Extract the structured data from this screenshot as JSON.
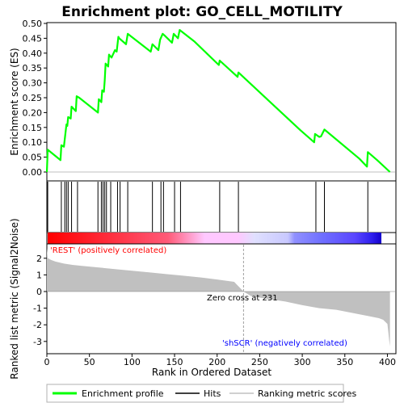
{
  "chart_data": {
    "type": "line",
    "title": "Enrichment plot: GO_CELL_MOTILITY",
    "xlabel": "Rank in Ordered Dataset",
    "ylabel_top": "Enrichment score (ES)",
    "ylabel_bottom": "Ranked list metric (Signal2Noise)",
    "xlim": [
      0,
      410
    ],
    "ylim_top": [
      0,
      0.5
    ],
    "ylim_bottom": [
      -3.4,
      2.6
    ],
    "x_ticks": [
      "0",
      "50",
      "100",
      "150",
      "200",
      "250",
      "300",
      "350",
      "400"
    ],
    "y_ticks_top": [
      "0.00",
      "0.05",
      "0.10",
      "0.15",
      "0.20",
      "0.25",
      "0.30",
      "0.35",
      "0.40",
      "0.45",
      "0.50"
    ],
    "y_ticks_bottom": [
      "-3",
      "-2",
      "-1",
      "0",
      "1",
      "2"
    ],
    "series": [
      {
        "name": "Enrichment profile",
        "color": "#00ff00",
        "x": [
          0,
          1,
          16,
          17,
          20,
          22,
          23,
          24,
          25,
          28,
          29,
          34,
          35,
          38,
          60,
          61,
          64,
          65,
          67,
          68,
          69,
          72,
          73,
          76,
          80,
          82,
          84,
          85,
          93,
          95,
          122,
          124,
          131,
          133,
          136,
          138,
          147,
          149,
          154,
          156,
          173,
          202,
          203,
          224,
          225,
          298,
          314,
          315,
          320,
          322,
          326,
          367,
          376,
          377,
          388,
          403
        ],
        "y": [
          0.0,
          0.075,
          0.04,
          0.09,
          0.085,
          0.135,
          0.16,
          0.155,
          0.185,
          0.18,
          0.22,
          0.205,
          0.255,
          0.25,
          0.2,
          0.245,
          0.235,
          0.275,
          0.27,
          0.31,
          0.365,
          0.355,
          0.395,
          0.385,
          0.41,
          0.405,
          0.455,
          0.45,
          0.43,
          0.465,
          0.405,
          0.43,
          0.41,
          0.445,
          0.465,
          0.46,
          0.435,
          0.465,
          0.45,
          0.478,
          0.44,
          0.36,
          0.375,
          0.32,
          0.335,
          0.14,
          0.1,
          0.128,
          0.118,
          0.12,
          0.143,
          0.045,
          0.018,
          0.067,
          0.04,
          0.0
        ]
      },
      {
        "name": "Hits",
        "color": "#000000",
        "x": [
          1,
          17,
          21,
          23,
          25,
          29,
          36,
          60,
          64,
          66,
          68,
          70,
          75,
          83,
          86,
          95,
          124,
          134,
          137,
          150,
          157,
          203,
          225,
          316,
          326,
          377
        ]
      },
      {
        "name": "Ranking metric scores",
        "color": "#c0c0c0",
        "x": [
          0,
          1,
          5,
          10,
          20,
          30,
          40,
          60,
          80,
          100,
          120,
          140,
          160,
          180,
          200,
          220,
          231,
          240,
          260,
          280,
          300,
          320,
          340,
          360,
          380,
          390,
          395,
          400,
          401,
          402,
          403
        ],
        "y": [
          2.6,
          2.0,
          1.9,
          1.8,
          1.68,
          1.6,
          1.55,
          1.45,
          1.35,
          1.25,
          1.15,
          1.05,
          0.95,
          0.85,
          0.72,
          0.58,
          0.0,
          -0.28,
          -0.45,
          -0.6,
          -0.82,
          -1.0,
          -1.1,
          -1.3,
          -1.5,
          -1.6,
          -1.7,
          -1.95,
          -2.4,
          -2.9,
          -3.3
        ]
      }
    ],
    "annotations": {
      "positive_label": "'REST' (positively correlated)",
      "negative_label": "'shSCR' (negatively correlated)",
      "zero_cross_label": "Zero cross at 231",
      "zero_cross_x": 231
    },
    "legend": {
      "position": "bottom",
      "entries": [
        "Enrichment profile",
        "Hits",
        "Ranking metric scores"
      ]
    },
    "colors": {
      "es_line": "#00ff00",
      "positive": "#ff0000",
      "negative": "#0000ff",
      "neutral_band": "#ffc0ff",
      "frame": "#000000",
      "metric_fill": "#c0c0c0"
    }
  }
}
